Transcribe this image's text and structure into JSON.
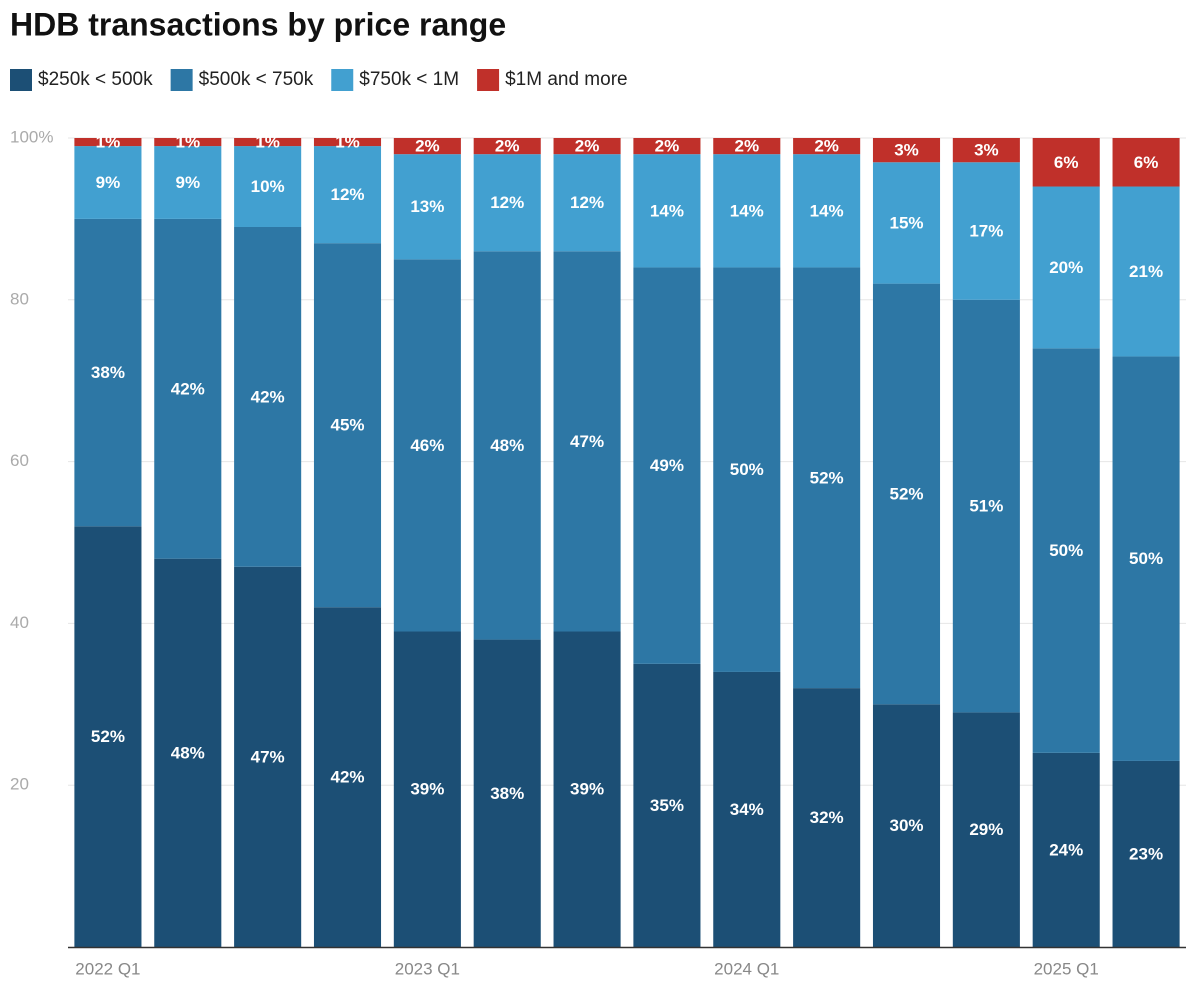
{
  "chart_data": {
    "type": "stacked_bar",
    "title": "HDB transactions by price range",
    "categories": [
      "2022 Q1",
      null,
      null,
      null,
      "2023 Q1",
      null,
      null,
      null,
      "2024 Q1",
      null,
      null,
      null,
      "2025 Q1",
      null
    ],
    "series": [
      {
        "name": "$250k < 500k",
        "color": "#1c4f75",
        "values": [
          52,
          48,
          47,
          42,
          39,
          38,
          39,
          35,
          34,
          32,
          30,
          29,
          24,
          23
        ],
        "value_labels": [
          "52%",
          "48%",
          "47%",
          "42%",
          "39%",
          "38%",
          "39%",
          "35%",
          "34%",
          "32%",
          "30%",
          "29%",
          "24%",
          "23%"
        ]
      },
      {
        "name": "$500k < 750k",
        "color": "#2d77a5",
        "values": [
          38,
          42,
          42,
          45,
          46,
          48,
          47,
          49,
          50,
          52,
          52,
          51,
          50,
          50
        ],
        "value_labels": [
          "38%",
          "42%",
          "42%",
          "45%",
          "46%",
          "48%",
          "47%",
          "49%",
          "50%",
          "52%",
          "52%",
          "51%",
          "50%",
          "50%"
        ]
      },
      {
        "name": "$750k < 1M",
        "color": "#42a0d0",
        "values": [
          9,
          9,
          10,
          12,
          13,
          12,
          12,
          14,
          14,
          14,
          15,
          17,
          20,
          21
        ],
        "value_labels": [
          "9%",
          "9%",
          "10%",
          "12%",
          "13%",
          "12%",
          "12%",
          "14%",
          "14%",
          "14%",
          "15%",
          "17%",
          "20%",
          "21%"
        ]
      },
      {
        "name": "$1M and more",
        "color": "#c0302a",
        "values": [
          1,
          1,
          1,
          1,
          2,
          2,
          2,
          2,
          2,
          2,
          3,
          3,
          6,
          6
        ],
        "value_labels": [
          "1%",
          "1%",
          "1%",
          "1%",
          "2%",
          "2%",
          "2%",
          "2%",
          "2%",
          "2%",
          "3%",
          "3%",
          "6%",
          "6%"
        ]
      }
    ],
    "ylim": [
      0,
      100
    ],
    "yticks": [
      20,
      40,
      60,
      80,
      {
        "value": 100,
        "label": "100%"
      }
    ],
    "grid": true
  }
}
